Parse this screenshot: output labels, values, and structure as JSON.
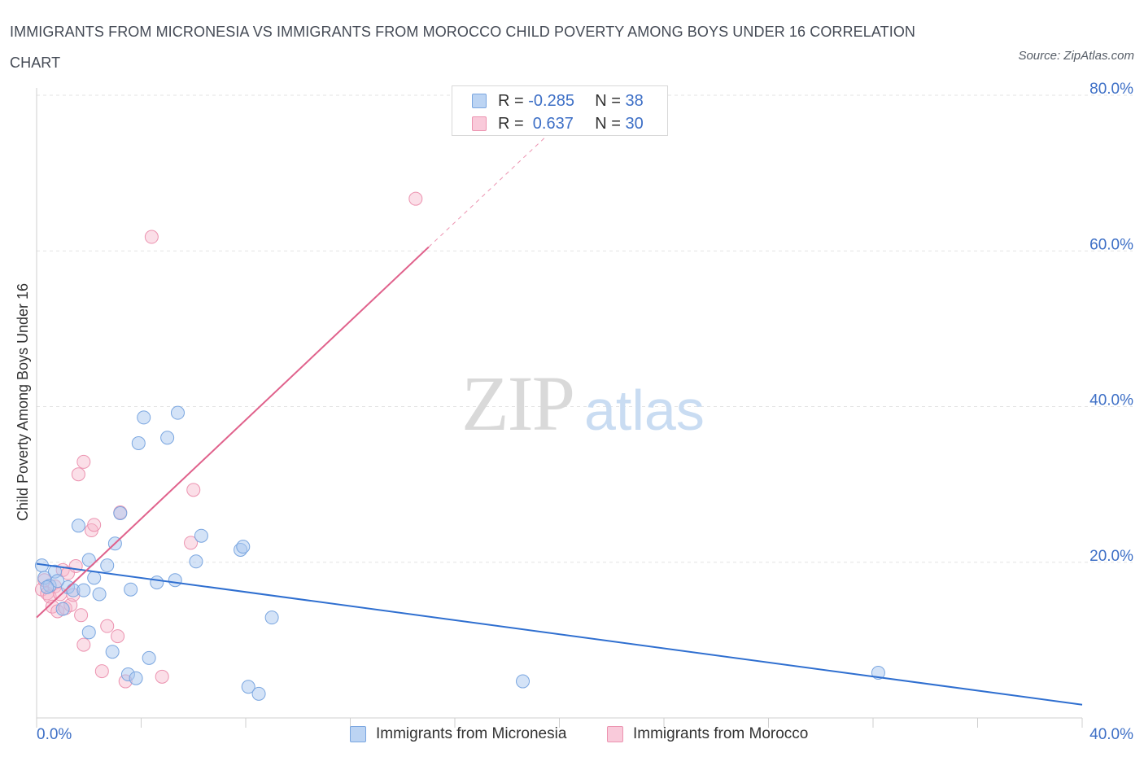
{
  "header": {
    "title": "IMMIGRANTS FROM MICRONESIA VS IMMIGRANTS FROM MOROCCO CHILD POVERTY AMONG BOYS UNDER 16 CORRELATION CHART",
    "source": "Source: ZipAtlas.com"
  },
  "watermark": {
    "zip": "ZIP",
    "atlas": "atlas"
  },
  "legend": {
    "micronesia": {
      "r_label": "R = ",
      "r_value": "-0.285",
      "n_label": "N = ",
      "n_value": "38"
    },
    "morocco": {
      "r_label": "R = ",
      "r_value": " 0.637",
      "n_label": "N = ",
      "n_value": "30"
    }
  },
  "colors": {
    "micronesia_fill": "#a9c8f0",
    "micronesia_stroke": "#7aa6e0",
    "micronesia_line": "#2f6fd0",
    "morocco_fill": "#f6b8cc",
    "morocco_stroke": "#ec93b0",
    "morocco_line": "#e0628c",
    "grid": "#e3e3e3",
    "axis_label": "#3d6fc6"
  },
  "chart_data": {
    "type": "scatter",
    "title": "IMMIGRANTS FROM MICRONESIA VS IMMIGRANTS FROM MOROCCO CHILD POVERTY AMONG BOYS UNDER 16 CORRELATION CHART",
    "xlabel": "",
    "ylabel": "Child Poverty Among Boys Under 16",
    "xlim": [
      0,
      40
    ],
    "ylim": [
      0,
      80
    ],
    "x_tick_labels": [
      {
        "value": 0,
        "label": "0.0%"
      },
      {
        "value": 40,
        "label": "40.0%"
      }
    ],
    "y_tick_labels": [
      {
        "value": 20,
        "label": "20.0%"
      },
      {
        "value": 40,
        "label": "40.0%"
      },
      {
        "value": 60,
        "label": "60.0%"
      },
      {
        "value": 80,
        "label": "80.0%"
      }
    ],
    "grid": true,
    "legend_position": "top-center",
    "series": [
      {
        "name": "Immigrants from Micronesia",
        "r": -0.285,
        "n": 38,
        "trend": {
          "x0": 0,
          "y0": 19.8,
          "x1": 40,
          "y1": 1.7
        },
        "points": [
          [
            0.2,
            19.6
          ],
          [
            0.3,
            18.0
          ],
          [
            0.5,
            17.0
          ],
          [
            0.7,
            18.8
          ],
          [
            0.8,
            17.6
          ],
          [
            1.0,
            14.0
          ],
          [
            1.2,
            16.8
          ],
          [
            1.4,
            16.4
          ],
          [
            1.6,
            24.7
          ],
          [
            1.8,
            16.4
          ],
          [
            2.0,
            11.0
          ],
          [
            2.0,
            20.3
          ],
          [
            2.2,
            18.0
          ],
          [
            2.4,
            15.9
          ],
          [
            2.7,
            19.6
          ],
          [
            2.9,
            8.5
          ],
          [
            3.0,
            22.4
          ],
          [
            3.2,
            26.3
          ],
          [
            3.5,
            5.6
          ],
          [
            3.6,
            16.5
          ],
          [
            3.8,
            5.1
          ],
          [
            3.9,
            35.3
          ],
          [
            4.1,
            38.6
          ],
          [
            4.3,
            7.7
          ],
          [
            4.6,
            17.4
          ],
          [
            5.0,
            36.0
          ],
          [
            5.3,
            17.7
          ],
          [
            5.4,
            39.2
          ],
          [
            6.1,
            20.1
          ],
          [
            6.3,
            23.4
          ],
          [
            7.8,
            21.6
          ],
          [
            7.9,
            22.0
          ],
          [
            8.1,
            4.0
          ],
          [
            8.5,
            3.1
          ],
          [
            9.0,
            12.9
          ],
          [
            18.6,
            4.7
          ],
          [
            32.2,
            5.8
          ],
          [
            0.4,
            16.8
          ]
        ]
      },
      {
        "name": "Immigrants from Morocco",
        "r": 0.637,
        "n": 30,
        "trend": {
          "x0": 0,
          "y0": 12.9,
          "x1": 15,
          "y1": 60.5
        },
        "trend_dashed": {
          "x0": 15,
          "y0": 60.5,
          "x1": 19.9,
          "y1": 76.0
        },
        "points": [
          [
            0.2,
            16.5
          ],
          [
            0.3,
            17.7
          ],
          [
            0.4,
            16.0
          ],
          [
            0.5,
            15.6
          ],
          [
            0.6,
            14.3
          ],
          [
            0.7,
            16.9
          ],
          [
            0.8,
            13.7
          ],
          [
            0.9,
            15.9
          ],
          [
            1.0,
            19.0
          ],
          [
            1.1,
            14.1
          ],
          [
            1.2,
            18.6
          ],
          [
            1.3,
            14.5
          ],
          [
            1.4,
            15.8
          ],
          [
            1.5,
            19.5
          ],
          [
            1.6,
            31.3
          ],
          [
            1.7,
            13.2
          ],
          [
            1.8,
            9.4
          ],
          [
            1.8,
            32.9
          ],
          [
            2.1,
            24.1
          ],
          [
            2.2,
            24.8
          ],
          [
            2.5,
            6.0
          ],
          [
            2.7,
            11.8
          ],
          [
            3.1,
            10.5
          ],
          [
            3.2,
            26.4
          ],
          [
            3.4,
            4.7
          ],
          [
            4.4,
            61.8
          ],
          [
            4.8,
            5.3
          ],
          [
            5.9,
            22.5
          ],
          [
            6.0,
            29.3
          ],
          [
            14.5,
            66.7
          ]
        ]
      }
    ]
  },
  "bottom_legend": {
    "micronesia_label": "Immigrants from Micronesia",
    "morocco_label": "Immigrants from Morocco"
  }
}
